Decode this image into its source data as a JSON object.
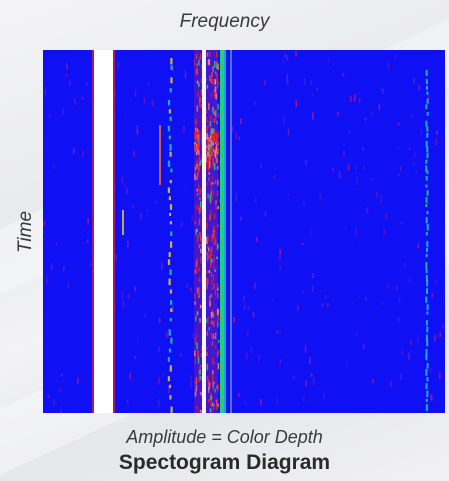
{
  "diagram": {
    "x_axis_label": "Frequency",
    "y_axis_label": "Time",
    "caption": "Amplitude = Color Depth",
    "title": "Spectogram Diagram"
  },
  "colors": {
    "background_field": "#1010f4",
    "band_white": "#ffffff",
    "band_red": "#e8202a",
    "band_green": "#22d07a",
    "band_cyan": "#18c8e0",
    "speckle_magenta": "#c01890",
    "speckle_purple": "#7020b0"
  }
}
